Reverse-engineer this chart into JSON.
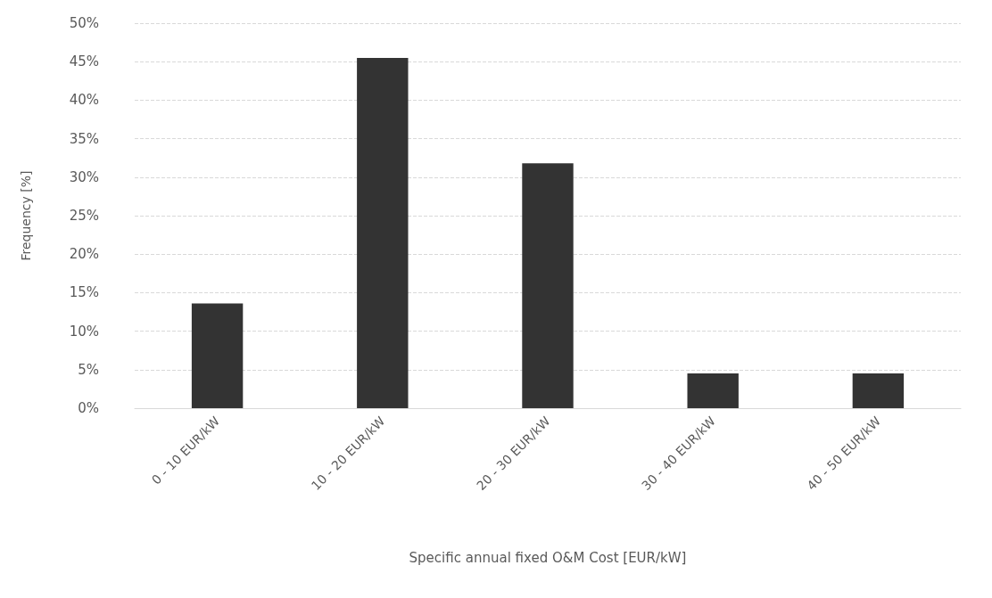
{
  "chart_data": {
    "type": "bar",
    "xlabel": "Specific annual fixed O&M Cost [EUR/kW]",
    "ylabel": "Frequency [%]",
    "categories": [
      "0 - 10 EUR/kW",
      "10 - 20 EUR/kW",
      "20 - 30 EUR/kW",
      "30 - 40 EUR/kW",
      "40 - 50 EUR/kW"
    ],
    "values": [
      13.6,
      45.5,
      31.8,
      4.5,
      4.5
    ],
    "color": "#333333",
    "ylim": [
      0,
      50
    ],
    "yticks": [
      {
        "value": 0,
        "label": "0%"
      },
      {
        "value": 5,
        "label": "5%"
      },
      {
        "value": 10,
        "label": "10%"
      },
      {
        "value": 15,
        "label": "15%"
      },
      {
        "value": 20,
        "label": "20%"
      },
      {
        "value": 25,
        "label": "25%"
      },
      {
        "value": 30,
        "label": "30%"
      },
      {
        "value": 35,
        "label": "35%"
      },
      {
        "value": 40,
        "label": "40%"
      },
      {
        "value": 45,
        "label": "45%"
      },
      {
        "value": 50,
        "label": "50%"
      }
    ],
    "grid": "y"
  }
}
